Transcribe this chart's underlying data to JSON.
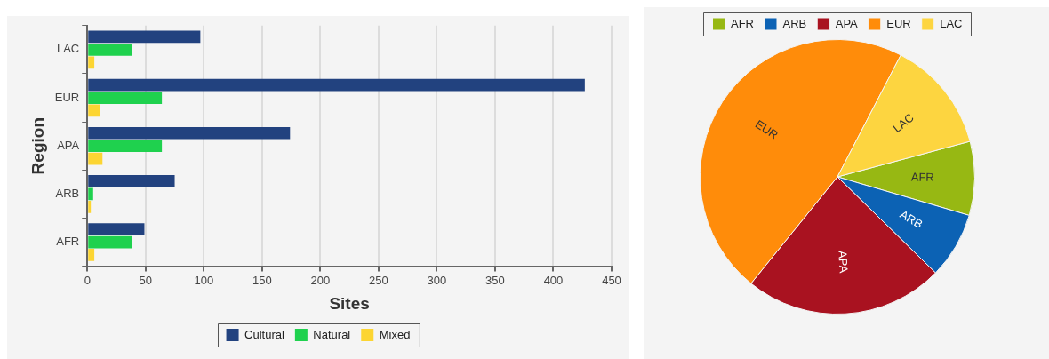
{
  "chart_data": [
    {
      "type": "bar",
      "orientation": "horizontal",
      "categories": [
        "LAC",
        "EUR",
        "APA",
        "ARB",
        "AFR"
      ],
      "series": [
        {
          "name": "Cultural",
          "color": "#22427f",
          "values": [
            97,
            427,
            174,
            75,
            49
          ]
        },
        {
          "name": "Natural",
          "color": "#1fd14e",
          "values": [
            38,
            64,
            64,
            5,
            38
          ]
        },
        {
          "name": "Mixed",
          "color": "#fcd532",
          "values": [
            6,
            11,
            13,
            3,
            6
          ]
        }
      ],
      "xlim": [
        0,
        450
      ],
      "xticks": [
        0,
        50,
        100,
        150,
        200,
        250,
        300,
        350,
        400,
        450
      ],
      "xlabel": "Sites",
      "ylabel": "Region",
      "grid": "x",
      "legend": "bottom"
    },
    {
      "type": "pie",
      "categories": [
        "AFR",
        "ARB",
        "APA",
        "EUR",
        "LAC"
      ],
      "values": [
        8.7,
        7.8,
        23.5,
        46.8,
        13.2
      ],
      "colors": [
        "#97b813",
        "#0c62b4",
        "#a91220",
        "#ff8c0a",
        "#fdd540"
      ],
      "legend": "top"
    }
  ]
}
